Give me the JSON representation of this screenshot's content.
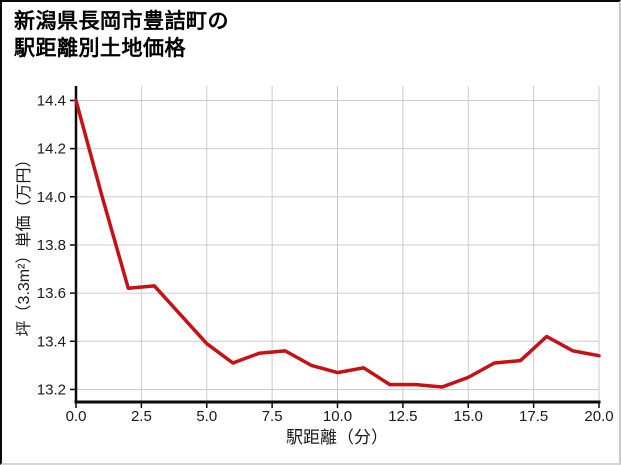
{
  "chart_data": {
    "type": "line",
    "title": "新潟県長岡市豊詰町の駅距離別土地価格",
    "title_lines": [
      "新潟県長岡市豊詰町の",
      "駅距離別土地価格"
    ],
    "xlabel": "駅距離（分）",
    "ylabel": "坪（3.3m²）単価（万円）",
    "x": [
      0,
      1,
      2,
      3,
      4,
      5,
      6,
      7,
      8,
      9,
      10,
      11,
      12,
      13,
      14,
      15,
      16,
      17,
      18,
      19,
      20
    ],
    "values": [
      14.4,
      14.0,
      13.62,
      13.63,
      13.51,
      13.39,
      13.31,
      13.35,
      13.36,
      13.3,
      13.27,
      13.29,
      13.22,
      13.22,
      13.21,
      13.25,
      13.31,
      13.32,
      13.42,
      13.36,
      13.34
    ],
    "x_tick_labels": [
      "0.0",
      "2.5",
      "5.0",
      "7.5",
      "10.0",
      "12.5",
      "15.0",
      "17.5",
      "20.0"
    ],
    "x_tick_values": [
      0,
      2.5,
      5,
      7.5,
      10,
      12.5,
      15,
      17.5,
      20
    ],
    "y_tick_labels": [
      "13.2",
      "13.4",
      "13.6",
      "13.8",
      "14.0",
      "14.2",
      "14.4"
    ],
    "y_tick_values": [
      13.2,
      13.4,
      13.6,
      13.8,
      14.0,
      14.2,
      14.4
    ],
    "xlim": [
      0,
      20
    ],
    "ylim": [
      13.15,
      14.46
    ],
    "grid": true,
    "legend": "none",
    "line_color": "#c81014",
    "line_width": 3.5,
    "grid_color": "#cccccc",
    "spine_color": "#0a0a0a",
    "tick_label_color": "#1a1a1a"
  }
}
